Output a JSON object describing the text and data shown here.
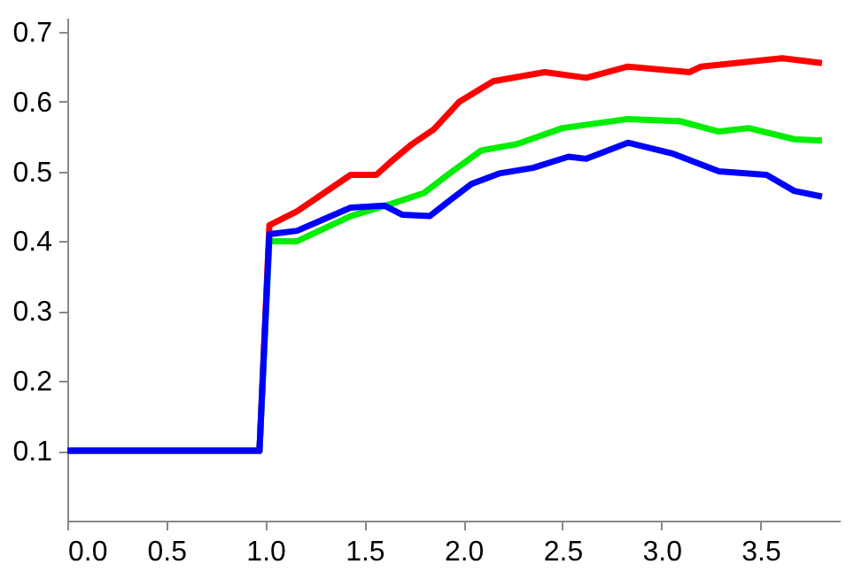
{
  "chart_data": {
    "type": "line",
    "xlim": [
      0,
      3.9
    ],
    "ylim": [
      0,
      0.72
    ],
    "xticks": [
      {
        "value": 0,
        "label": "0.0"
      },
      0.5,
      {
        "value": 1,
        "label": "1.0"
      },
      1.5,
      {
        "value": 2,
        "label": "2.0"
      },
      2.5,
      {
        "value": 3,
        "label": "3.0"
      },
      3.5
    ],
    "yticks": [
      0.1,
      0.2,
      0.3,
      0.4,
      0.5,
      0.6,
      0.7
    ],
    "grid": false,
    "legend": false,
    "series": [
      {
        "color": "#ff0000",
        "x": [
          0,
          0.97,
          1.02,
          1.16,
          1.43,
          1.56,
          1.63,
          1.74,
          1.85,
          1.98,
          2.15,
          2.41,
          2.62,
          2.83,
          3.14,
          3.2,
          3.61,
          3.81
        ],
        "values": [
          0.1,
          0.1,
          0.423,
          0.443,
          0.495,
          0.495,
          0.513,
          0.539,
          0.56,
          0.6,
          0.629,
          0.642,
          0.634,
          0.65,
          0.642,
          0.65,
          0.662,
          0.655
        ]
      },
      {
        "color": "#00ee00",
        "x": [
          0,
          0.97,
          1.02,
          1.16,
          1.43,
          1.63,
          1.8,
          1.92,
          2.09,
          2.27,
          2.5,
          2.83,
          3.09,
          3.29,
          3.44,
          3.67,
          3.81
        ],
        "values": [
          0.1,
          0.1,
          0.4,
          0.4,
          0.436,
          0.453,
          0.469,
          0.495,
          0.53,
          0.539,
          0.562,
          0.575,
          0.572,
          0.557,
          0.562,
          0.546,
          0.544
        ]
      },
      {
        "color": "#0000ff",
        "x": [
          0,
          0.97,
          1.02,
          1.16,
          1.43,
          1.6,
          1.69,
          1.83,
          1.92,
          2.04,
          2.18,
          2.35,
          2.53,
          2.62,
          2.83,
          3.05,
          3.29,
          3.53,
          3.67,
          3.81
        ],
        "values": [
          0.1,
          0.1,
          0.41,
          0.415,
          0.448,
          0.451,
          0.438,
          0.436,
          0.456,
          0.482,
          0.497,
          0.505,
          0.521,
          0.518,
          0.541,
          0.526,
          0.5,
          0.495,
          0.472,
          0.464
        ]
      }
    ]
  }
}
